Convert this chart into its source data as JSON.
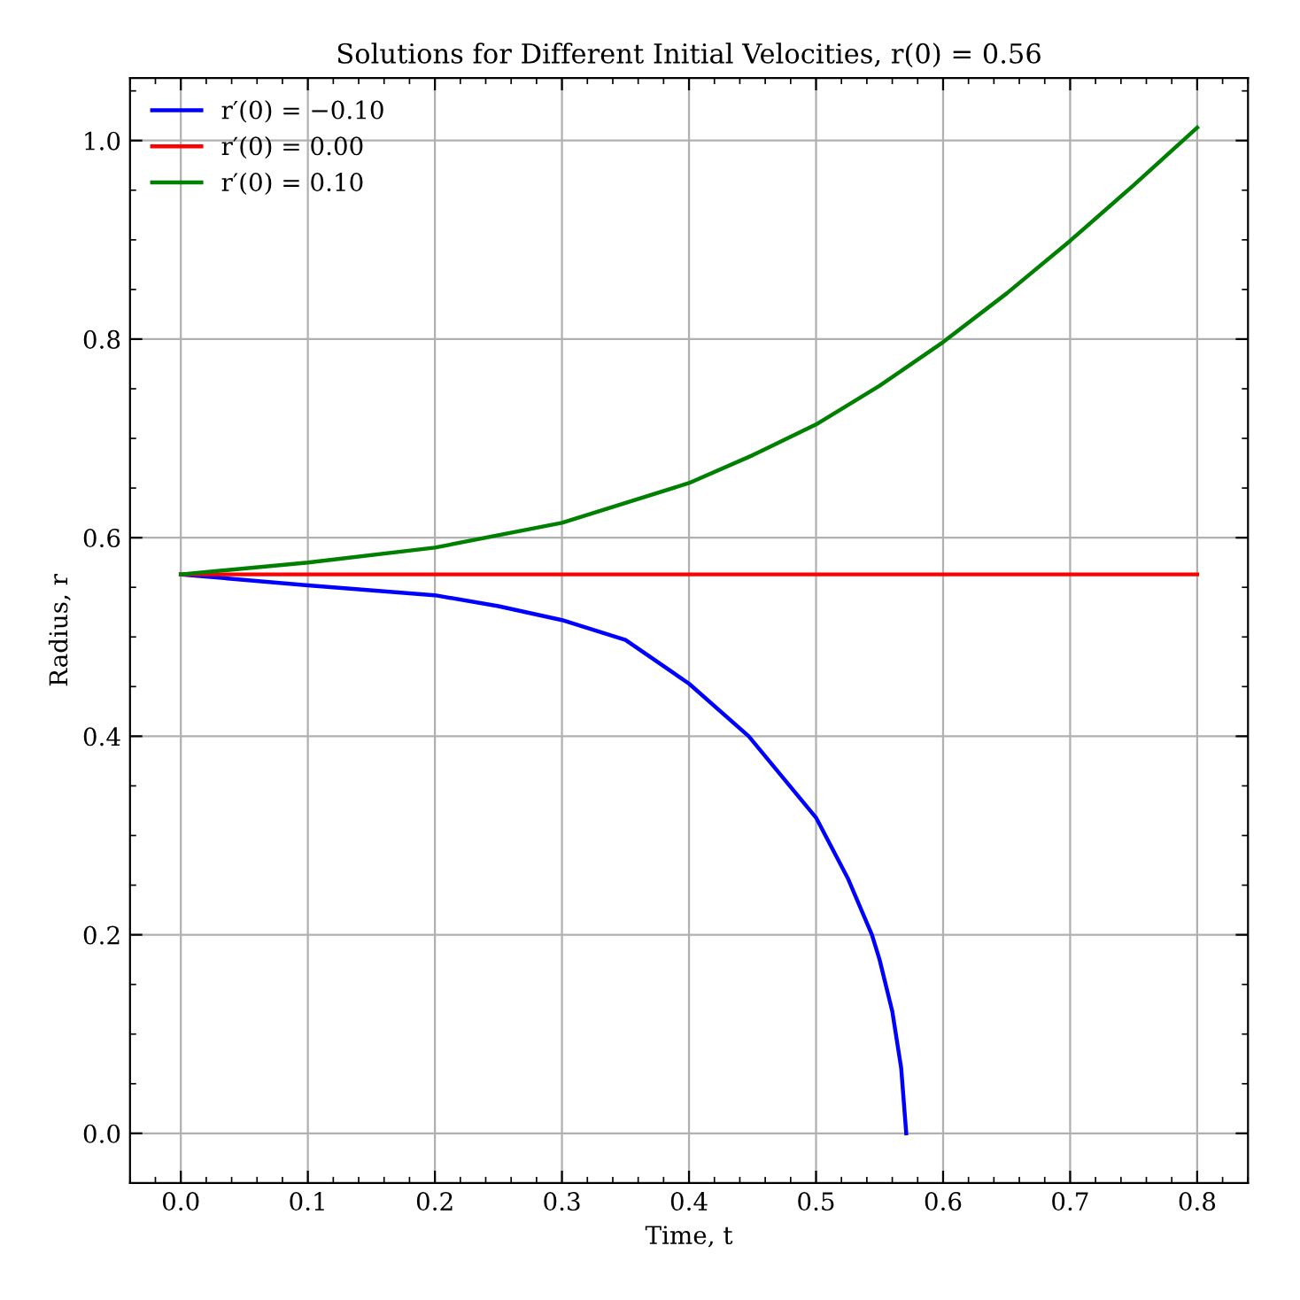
{
  "chart_data": {
    "type": "line",
    "title": "Solutions for Different Initial Velocities, r(0) = 0.56",
    "xlabel": "Time, t",
    "ylabel": "Radius, r",
    "series": [
      {
        "name": "r′(0) = −0.10",
        "color": "#0000ff",
        "x": [
          0,
          0.1,
          0.2,
          0.25,
          0.3,
          0.35,
          0.4,
          0.447,
          0.5,
          0.525,
          0.544,
          0.55,
          0.56,
          0.567,
          0.571
        ],
        "values": [
          0.563,
          0.552,
          0.542,
          0.531,
          0.517,
          0.497,
          0.453,
          0.4,
          0.318,
          0.257,
          0.2,
          0.175,
          0.123,
          0.066,
          0
        ]
      },
      {
        "name": "r′(0) = 0.00",
        "color": "#ff0000",
        "x": [
          0,
          0.8
        ],
        "values": [
          0.563,
          0.563
        ]
      },
      {
        "name": "r′(0) = 0.10",
        "color": "#008000",
        "x": [
          0,
          0.1,
          0.2,
          0.3,
          0.4,
          0.45,
          0.5,
          0.55,
          0.6,
          0.65,
          0.7,
          0.75,
          0.8
        ],
        "values": [
          0.563,
          0.575,
          0.59,
          0.615,
          0.655,
          0.683,
          0.714,
          0.753,
          0.797,
          0.846,
          0.899,
          0.955,
          1.013
        ]
      }
    ],
    "xlim": [
      -0.04,
      0.84
    ],
    "ylim": [
      -0.05,
      1.063
    ],
    "xticks": [
      {
        "value": 0,
        "label": "0.0"
      },
      0.1,
      0.2,
      0.3,
      0.4,
      0.5,
      0.6,
      0.7,
      0.8
    ],
    "yticks": [
      {
        "value": 0,
        "label": "0.0"
      },
      0.2,
      0.4,
      0.6,
      0.8,
      {
        "value": 1,
        "label": "1.0"
      }
    ],
    "grid": true,
    "legend": "top left",
    "marker": "none",
    "line_style": "solid"
  }
}
